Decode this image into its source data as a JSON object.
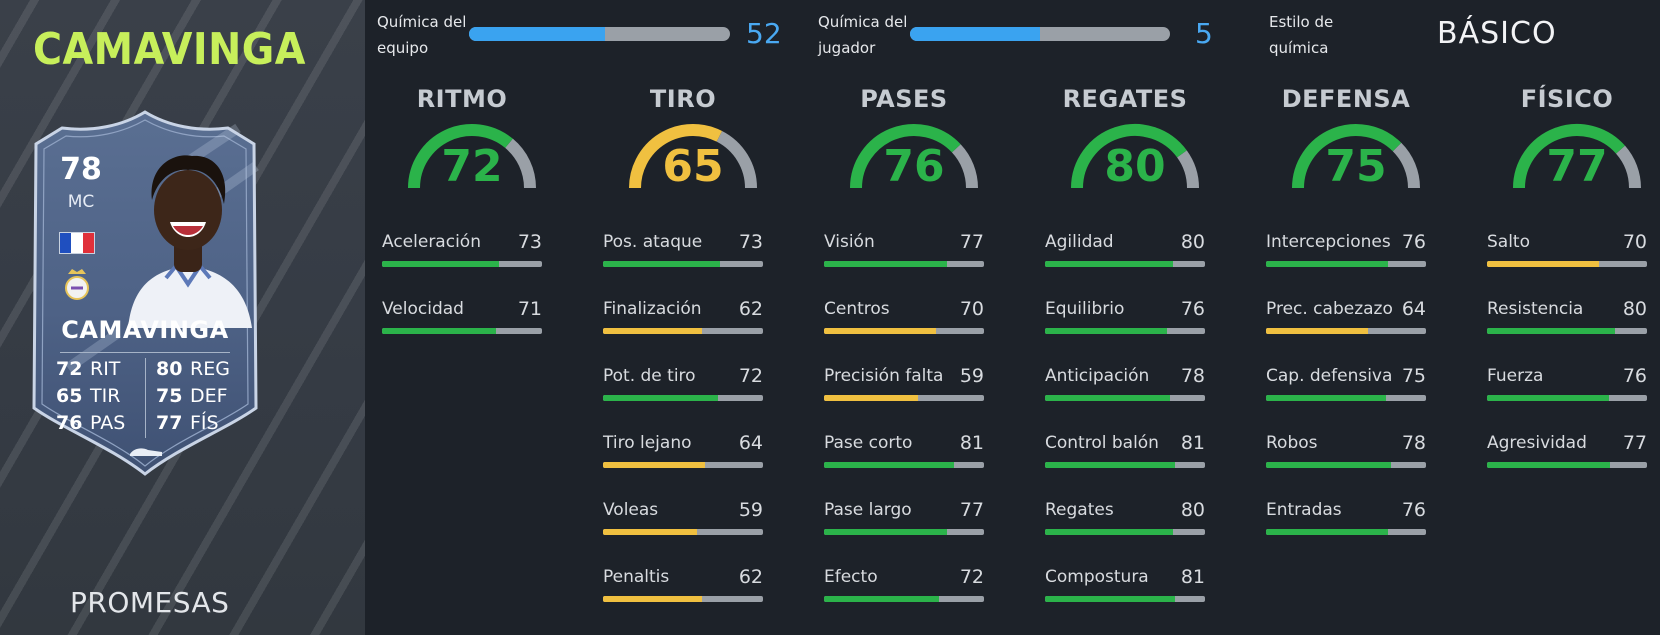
{
  "player": {
    "name": "CAMAVINGA",
    "rating": "78",
    "position": "MC",
    "program": "PROMESAS"
  },
  "card": {
    "name": "CAMAVINGA",
    "stats": [
      {
        "value": "72",
        "label": "RIT"
      },
      {
        "value": "65",
        "label": "TIR"
      },
      {
        "value": "76",
        "label": "PAS"
      },
      {
        "value": "80",
        "label": "REG"
      },
      {
        "value": "75",
        "label": "DEF"
      },
      {
        "value": "77",
        "label": "FÍS"
      }
    ]
  },
  "chemistry": {
    "team": {
      "label_line1": "Química del",
      "label_line2": "equipo",
      "value": "52",
      "fraction": 0.52
    },
    "player": {
      "label_line1": "Química del",
      "label_line2": "jugador",
      "value": "5",
      "fraction": 0.5
    },
    "style": {
      "label_line1": "Estilo de",
      "label_line2": "química",
      "value": "BÁSICO"
    }
  },
  "colors": {
    "high": "#2bb34a",
    "mid": "#f0c040",
    "track": "#9aa0a7",
    "chem_blue": "#3aa3f0",
    "name_green": "#c7ef5b"
  },
  "attributes": [
    {
      "title": "RITMO",
      "value": "72",
      "tier": "high",
      "stats": [
        {
          "name": "Aceleración",
          "value": "73",
          "tier": "high"
        },
        {
          "name": "Velocidad",
          "value": "71",
          "tier": "high"
        }
      ]
    },
    {
      "title": "TIRO",
      "value": "65",
      "tier": "mid",
      "stats": [
        {
          "name": "Pos. ataque",
          "value": "73",
          "tier": "high"
        },
        {
          "name": "Finalización",
          "value": "62",
          "tier": "mid"
        },
        {
          "name": "Pot. de tiro",
          "value": "72",
          "tier": "high"
        },
        {
          "name": "Tiro lejano",
          "value": "64",
          "tier": "mid"
        },
        {
          "name": "Voleas",
          "value": "59",
          "tier": "mid"
        },
        {
          "name": "Penaltis",
          "value": "62",
          "tier": "mid"
        }
      ]
    },
    {
      "title": "PASES",
      "value": "76",
      "tier": "high",
      "stats": [
        {
          "name": "Visión",
          "value": "77",
          "tier": "high"
        },
        {
          "name": "Centros",
          "value": "70",
          "tier": "mid"
        },
        {
          "name": "Precisión falta",
          "value": "59",
          "tier": "mid"
        },
        {
          "name": "Pase corto",
          "value": "81",
          "tier": "high"
        },
        {
          "name": "Pase largo",
          "value": "77",
          "tier": "high"
        },
        {
          "name": "Efecto",
          "value": "72",
          "tier": "high"
        }
      ]
    },
    {
      "title": "REGATES",
      "value": "80",
      "tier": "high",
      "stats": [
        {
          "name": "Agilidad",
          "value": "80",
          "tier": "high"
        },
        {
          "name": "Equilibrio",
          "value": "76",
          "tier": "high"
        },
        {
          "name": "Anticipación",
          "value": "78",
          "tier": "high"
        },
        {
          "name": "Control balón",
          "value": "81",
          "tier": "high"
        },
        {
          "name": "Regates",
          "value": "80",
          "tier": "high"
        },
        {
          "name": "Compostura",
          "value": "81",
          "tier": "high"
        }
      ]
    },
    {
      "title": "DEFENSA",
      "value": "75",
      "tier": "high",
      "stats": [
        {
          "name": "Intercepciones",
          "value": "76",
          "tier": "high"
        },
        {
          "name": "Prec. cabezazo",
          "value": "64",
          "tier": "mid"
        },
        {
          "name": "Cap. defensiva",
          "value": "75",
          "tier": "high"
        },
        {
          "name": "Robos",
          "value": "78",
          "tier": "high"
        },
        {
          "name": "Entradas",
          "value": "76",
          "tier": "high"
        }
      ]
    },
    {
      "title": "FÍSICO",
      "value": "77",
      "tier": "high",
      "stats": [
        {
          "name": "Salto",
          "value": "70",
          "tier": "mid"
        },
        {
          "name": "Resistencia",
          "value": "80",
          "tier": "high"
        },
        {
          "name": "Fuerza",
          "value": "76",
          "tier": "high"
        },
        {
          "name": "Agresividad",
          "value": "77",
          "tier": "high"
        }
      ]
    }
  ]
}
